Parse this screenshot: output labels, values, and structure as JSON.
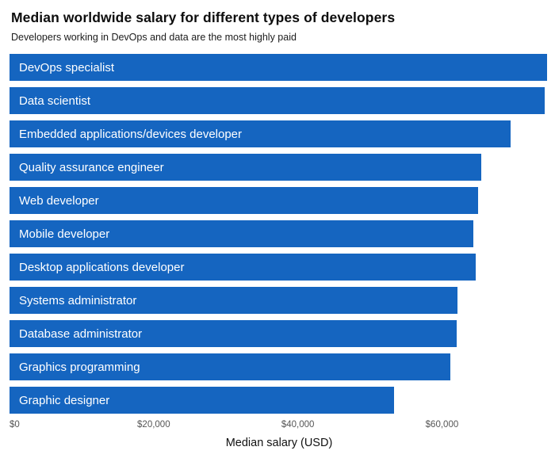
{
  "header": {
    "title": "Median worldwide salary for different types of developers",
    "subtitle": "Developers working in DevOps and data are the most highly paid"
  },
  "chart_data": {
    "type": "bar",
    "orientation": "horizontal",
    "title": "Median worldwide salary for different types of developers",
    "subtitle": "Developers working in DevOps and data are the most highly paid",
    "categories": [
      "DevOps specialist",
      "Data scientist",
      "Embedded applications/devices developer",
      "Quality assurance engineer",
      "Web developer",
      "Mobile developer",
      "Desktop applications developer",
      "Systems administrator",
      "Database administrator",
      "Graphics programming",
      "Graphic designer"
    ],
    "values": [
      74600,
      74200,
      69500,
      65400,
      65000,
      64400,
      64700,
      62100,
      62000,
      61200,
      53300
    ],
    "xlabel": "Median salary (USD)",
    "ylabel": "",
    "xlim": [
      0,
      74800
    ],
    "x_ticks": [
      {
        "value": 0,
        "label": "$0"
      },
      {
        "value": 20000,
        "label": "$20,000"
      },
      {
        "value": 40000,
        "label": "$40,000"
      },
      {
        "value": 60000,
        "label": "$60,000"
      }
    ],
    "grid": false,
    "legend": "none",
    "bar_color": "#1565C0",
    "bar_label_color": "#FFFFFF"
  }
}
